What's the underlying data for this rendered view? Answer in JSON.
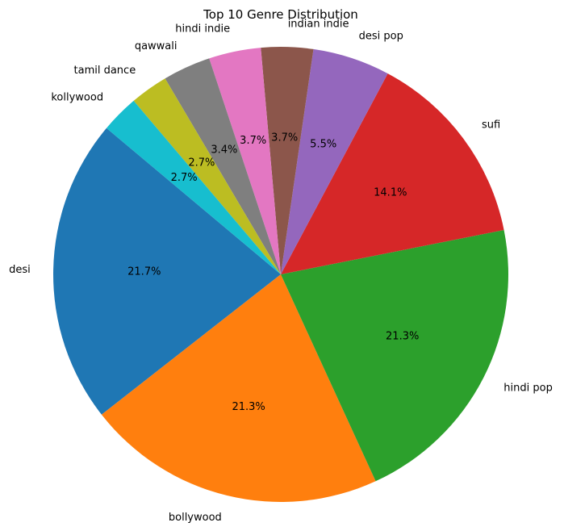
{
  "chart_data": {
    "type": "pie",
    "title": "Top 10 Genre Distribution",
    "slices": [
      {
        "label": "desi",
        "percent": 21.7,
        "pct_label": "21.7%",
        "color": "#1f77b4"
      },
      {
        "label": "bollywood",
        "percent": 21.3,
        "pct_label": "21.3%",
        "color": "#ff7f0e"
      },
      {
        "label": "hindi pop",
        "percent": 21.3,
        "pct_label": "21.3%",
        "color": "#2ca02c"
      },
      {
        "label": "sufi",
        "percent": 14.1,
        "pct_label": "14.1%",
        "color": "#d62728"
      },
      {
        "label": "desi pop",
        "percent": 5.5,
        "pct_label": "5.5%",
        "color": "#9467bd"
      },
      {
        "label": "indian indie",
        "percent": 3.7,
        "pct_label": "3.7%",
        "color": "#8c564b"
      },
      {
        "label": "hindi indie",
        "percent": 3.7,
        "pct_label": "3.7%",
        "color": "#e377c2"
      },
      {
        "label": "qawwali",
        "percent": 3.4,
        "pct_label": "3.4%",
        "color": "#7f7f7f"
      },
      {
        "label": "tamil dance",
        "percent": 2.7,
        "pct_label": "2.7%",
        "color": "#bcbd22"
      },
      {
        "label": "kollywood",
        "percent": 2.7,
        "pct_label": "2.7%",
        "color": "#17becf"
      }
    ],
    "start_angle_deg": 140,
    "direction": "counterclockwise",
    "legend": "none"
  }
}
